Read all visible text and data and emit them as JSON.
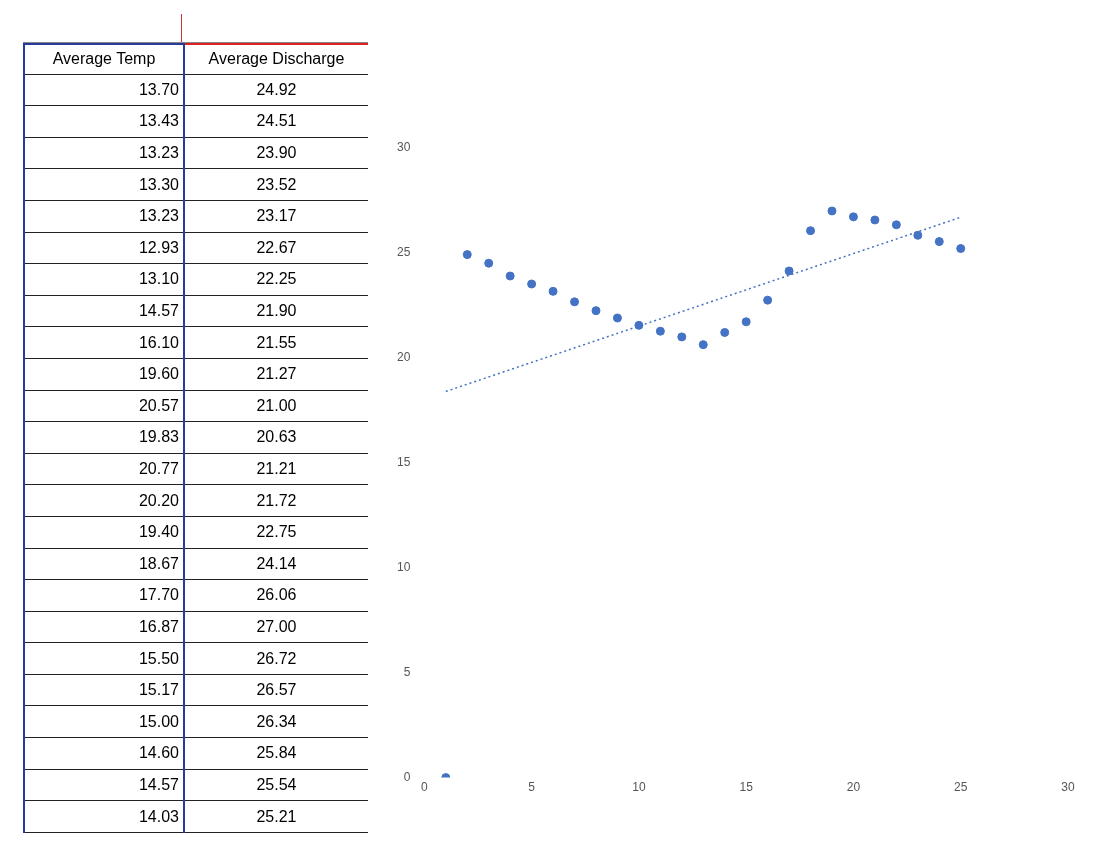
{
  "chart_data": [
    {
      "type": "other",
      "series": [
        {
          "name": "Average Temp",
          "values": [
            13.7,
            13.43,
            13.23,
            13.3,
            13.23,
            12.93,
            13.1,
            14.57,
            16.1,
            19.6,
            20.57,
            19.83,
            20.77,
            20.2,
            19.4,
            18.67,
            17.7,
            16.87,
            15.5,
            15.17,
            15.0,
            14.6,
            14.57,
            14.03
          ],
          "value_labels": [
            "13.70",
            "13.43",
            "13.23",
            "13.30",
            "13.23",
            "12.93",
            "13.10",
            "14.57",
            "16.10",
            "19.60",
            "20.57",
            "19.83",
            "20.77",
            "20.20",
            "19.40",
            "18.67",
            "17.70",
            "16.87",
            "15.50",
            "15.17",
            "15.00",
            "14.60",
            "14.57",
            "14.03"
          ]
        }
      ]
    },
    {
      "type": "scatter",
      "x": [
        1,
        2,
        3,
        4,
        5,
        6,
        7,
        8,
        9,
        10,
        11,
        12,
        13,
        14,
        15,
        16,
        17,
        18,
        19,
        20,
        21,
        22,
        23,
        24,
        25
      ],
      "grid": false,
      "xlim": [
        0,
        30
      ],
      "xticks": [
        0,
        5,
        10,
        15,
        20,
        25,
        30
      ],
      "ylim": [
        0,
        30
      ],
      "yticks": [
        0,
        5,
        10,
        15,
        20,
        25,
        30
      ],
      "series": [
        {
          "name": "Average Discharge",
          "color": "#4472c4",
          "marker": "circle",
          "values": [
            0,
            24.92,
            24.51,
            23.9,
            23.52,
            23.17,
            22.67,
            22.25,
            21.9,
            21.55,
            21.27,
            21.0,
            20.63,
            21.21,
            21.72,
            22.75,
            24.14,
            26.06,
            27.0,
            26.72,
            26.57,
            26.34,
            25.84,
            25.54,
            25.21
          ],
          "value_labels": [
            null,
            "24.92",
            "24.51",
            "23.90",
            "23.52",
            "23.17",
            "22.67",
            "22.25",
            "21.90",
            "21.55",
            "21.27",
            "21.00",
            "20.63",
            "21.21",
            "21.72",
            "22.75",
            "24.14",
            "26.06",
            "27.00",
            "26.72",
            "26.57",
            "26.34",
            "25.84",
            "25.54",
            "25.21"
          ]
        },
        {
          "type": "line",
          "color": "#4472c4",
          "line_style": "dotted",
          "marker": "none",
          "x": [
            1,
            25
          ],
          "values": [
            18.4,
            26.7
          ]
        }
      ]
    }
  ]
}
